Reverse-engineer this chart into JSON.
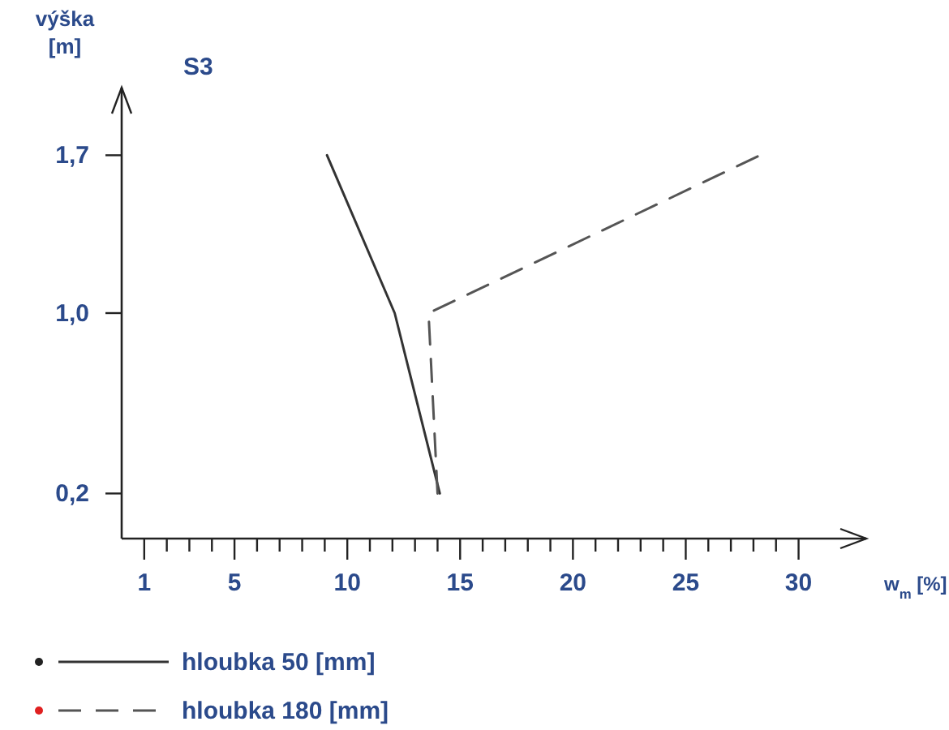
{
  "chart_data": {
    "type": "line",
    "title": "S3",
    "ylabel": "výška\n[m]",
    "xlabel": "w$_{m}$ [%]",
    "xlim": [
      0,
      33
    ],
    "ylim": [
      0,
      2
    ],
    "xticks": [
      1,
      {
        "value": 2,
        "label": null
      },
      {
        "value": 3,
        "label": null
      },
      {
        "value": 4,
        "label": null
      },
      5,
      {
        "value": 6,
        "label": null
      },
      {
        "value": 7,
        "label": null
      },
      {
        "value": 8,
        "label": null
      },
      {
        "value": 9,
        "label": null
      },
      10,
      {
        "value": 11,
        "label": null
      },
      {
        "value": 12,
        "label": null
      },
      {
        "value": 13,
        "label": null
      },
      {
        "value": 14,
        "label": null
      },
      15,
      {
        "value": 16,
        "label": null
      },
      {
        "value": 17,
        "label": null
      },
      {
        "value": 18,
        "label": null
      },
      {
        "value": 19,
        "label": null
      },
      20,
      {
        "value": 21,
        "label": null
      },
      {
        "value": 22,
        "label": null
      },
      {
        "value": 23,
        "label": null
      },
      {
        "value": 24,
        "label": null
      },
      25,
      {
        "value": 26,
        "label": null
      },
      {
        "value": 27,
        "label": null
      },
      {
        "value": 28,
        "label": null
      },
      {
        "value": 29,
        "label": null
      },
      30
    ],
    "yticks": [
      {
        "value": 0.2,
        "label": "0,2"
      },
      {
        "value": 1.0,
        "label": "1,0"
      },
      {
        "value": 1.7,
        "label": "1,7"
      }
    ],
    "legend": "bottom left",
    "grid": false,
    "series": [
      {
        "name": "hloubka 50 [mm]",
        "color": "#333333",
        "line_style": "solid",
        "x": [
          14.1,
          12.1,
          9.1
        ],
        "values": [
          0.2,
          1.0,
          1.7
        ]
      },
      {
        "name": "hloubka 180 [mm]",
        "color": "#555555",
        "line_style": "dashed",
        "x": [
          14.0,
          13.6,
          28.3
        ],
        "values": [
          0.2,
          1.0,
          1.7
        ]
      }
    ]
  }
}
